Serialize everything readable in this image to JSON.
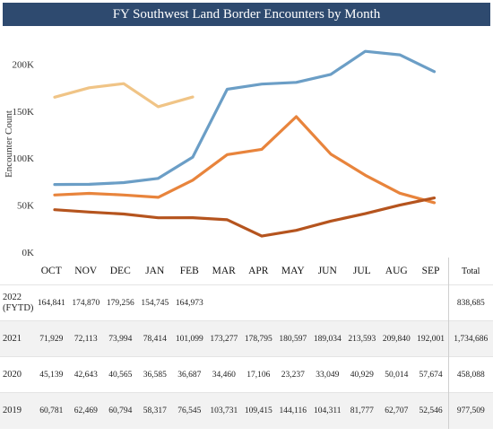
{
  "title": "FY Southwest Land Border Encounters by Month",
  "chart_data": {
    "type": "line",
    "title": "FY Southwest Land Border Encounters by Month",
    "ylabel": "Encounter Count",
    "xlabel": "",
    "ylim": [
      0,
      230000
    ],
    "yticks": [
      "0K",
      "50K",
      "100K",
      "150K",
      "200K"
    ],
    "categories": [
      "OCT",
      "NOV",
      "DEC",
      "JAN",
      "FEB",
      "MAR",
      "APR",
      "MAY",
      "JUN",
      "JUL",
      "AUG",
      "SEP"
    ],
    "series": [
      {
        "name": "2022 (FYTD)",
        "color": "#f0c486",
        "values": [
          164841,
          174870,
          179256,
          154745,
          164973,
          null,
          null,
          null,
          null,
          null,
          null,
          null
        ],
        "total": "838,685"
      },
      {
        "name": "2021",
        "color": "#6b9ec6",
        "values": [
          71929,
          72113,
          73994,
          78414,
          101099,
          173277,
          178795,
          180597,
          189034,
          213593,
          209840,
          192001
        ],
        "total": "1,734,686"
      },
      {
        "name": "2020",
        "color": "#b5541e",
        "values": [
          45139,
          42643,
          40565,
          36585,
          36687,
          34460,
          17106,
          23237,
          33049,
          40929,
          50014,
          57674
        ],
        "total": "458,088"
      },
      {
        "name": "2019",
        "color": "#e8843c",
        "values": [
          60781,
          62469,
          60794,
          58317,
          76545,
          103731,
          109415,
          144116,
          104311,
          81777,
          62707,
          52546
        ],
        "total": "977,509"
      }
    ],
    "grid": false,
    "legend": "table-below"
  },
  "table": {
    "total_header": "Total",
    "rows": [
      {
        "label_line1": "2022",
        "label_line2": "(FYTD)",
        "cells": [
          "164,841",
          "174,870",
          "179,256",
          "154,745",
          "164,973",
          "",
          "",
          "",
          "",
          "",
          "",
          ""
        ],
        "total": "838,685"
      },
      {
        "label_line1": "2021",
        "label_line2": "",
        "cells": [
          "71,929",
          "72,113",
          "73,994",
          "78,414",
          "101,099",
          "173,277",
          "178,795",
          "180,597",
          "189,034",
          "213,593",
          "209,840",
          "192,001"
        ],
        "total": "1,734,686"
      },
      {
        "label_line1": "2020",
        "label_line2": "",
        "cells": [
          "45,139",
          "42,643",
          "40,565",
          "36,585",
          "36,687",
          "34,460",
          "17,106",
          "23,237",
          "33,049",
          "40,929",
          "50,014",
          "57,674"
        ],
        "total": "458,088"
      },
      {
        "label_line1": "2019",
        "label_line2": "",
        "cells": [
          "60,781",
          "62,469",
          "60,794",
          "58,317",
          "76,545",
          "103,731",
          "109,415",
          "144,116",
          "104,311",
          "81,777",
          "62,707",
          "52,546"
        ],
        "total": "977,509"
      }
    ]
  }
}
